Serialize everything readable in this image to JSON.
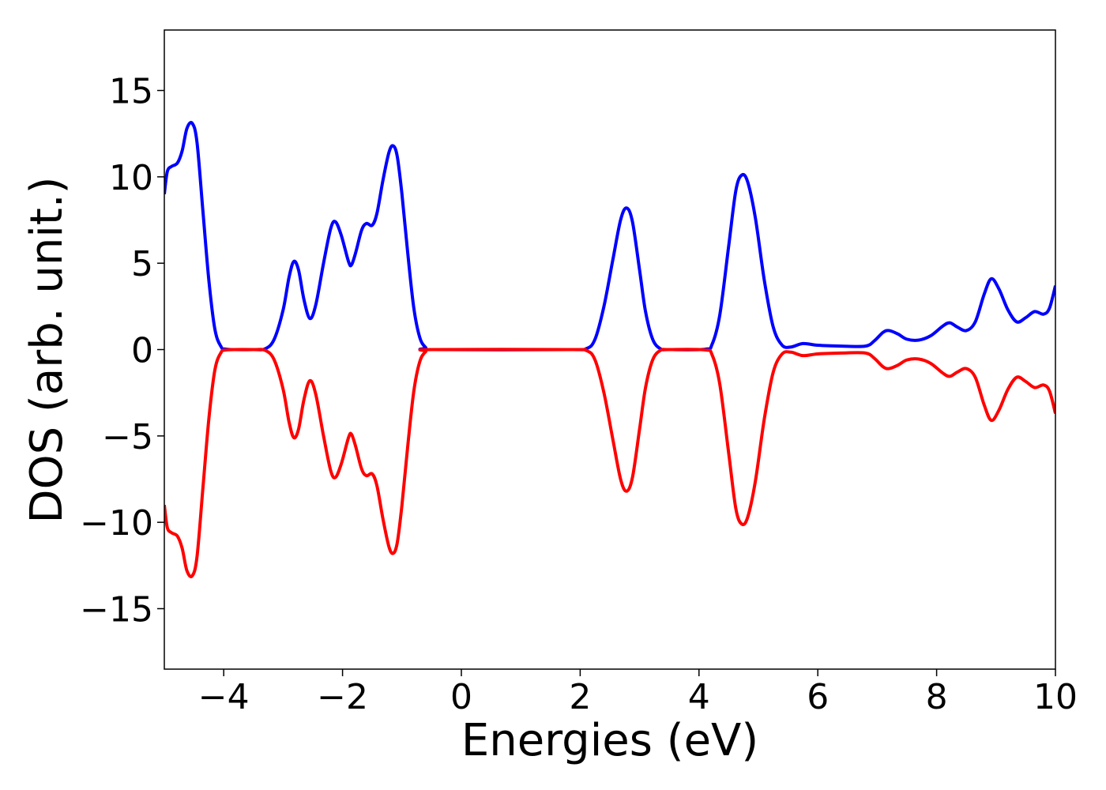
{
  "chart_data": {
    "type": "line",
    "title": "",
    "xlabel": "Energies (eV)",
    "ylabel": "DOS (arb. unit.)",
    "xlim": [
      -5,
      10
    ],
    "ylim": [
      -18.5,
      18.5
    ],
    "grid": false,
    "legend": "none",
    "xticks": [
      -4,
      -2,
      0,
      2,
      4,
      6,
      8,
      10
    ],
    "yticks": [
      -15,
      -10,
      -5,
      0,
      5,
      10,
      15
    ],
    "xtick_labels": [
      "−4",
      "−2",
      "0",
      "2",
      "4",
      "6",
      "8",
      "10"
    ],
    "ytick_labels": [
      "−15",
      "−10",
      "−5",
      "0",
      "5",
      "10",
      "15"
    ],
    "series": [
      {
        "color": "#0000ff",
        "points": [
          [
            -5.0,
            9.0
          ],
          [
            -4.95,
            10.3
          ],
          [
            -4.88,
            10.6
          ],
          [
            -4.78,
            10.8
          ],
          [
            -4.7,
            11.5
          ],
          [
            -4.62,
            12.8
          ],
          [
            -4.53,
            13.1
          ],
          [
            -4.45,
            12.0
          ],
          [
            -4.35,
            8.0
          ],
          [
            -4.25,
            4.0
          ],
          [
            -4.15,
            1.2
          ],
          [
            -4.05,
            0.2
          ],
          [
            -3.95,
            0.02
          ],
          [
            -3.5,
            0.0
          ],
          [
            -3.3,
            0.05
          ],
          [
            -3.15,
            0.6
          ],
          [
            -3.0,
            2.3
          ],
          [
            -2.9,
            4.2
          ],
          [
            -2.82,
            5.1
          ],
          [
            -2.74,
            4.6
          ],
          [
            -2.65,
            2.9
          ],
          [
            -2.55,
            1.8
          ],
          [
            -2.45,
            2.6
          ],
          [
            -2.32,
            5.0
          ],
          [
            -2.2,
            7.0
          ],
          [
            -2.12,
            7.4
          ],
          [
            -2.02,
            6.6
          ],
          [
            -1.9,
            5.1
          ],
          [
            -1.85,
            4.9
          ],
          [
            -1.78,
            5.6
          ],
          [
            -1.68,
            6.9
          ],
          [
            -1.6,
            7.3
          ],
          [
            -1.5,
            7.2
          ],
          [
            -1.42,
            7.9
          ],
          [
            -1.32,
            9.8
          ],
          [
            -1.22,
            11.4
          ],
          [
            -1.15,
            11.8
          ],
          [
            -1.08,
            11.2
          ],
          [
            -1.0,
            9.0
          ],
          [
            -0.9,
            5.5
          ],
          [
            -0.8,
            2.4
          ],
          [
            -0.7,
            0.7
          ],
          [
            -0.6,
            0.12
          ],
          [
            -0.5,
            0.0
          ],
          [
            1.8,
            0.0
          ],
          [
            2.1,
            0.05
          ],
          [
            2.25,
            0.6
          ],
          [
            2.4,
            2.5
          ],
          [
            2.55,
            5.2
          ],
          [
            2.68,
            7.5
          ],
          [
            2.78,
            8.2
          ],
          [
            2.88,
            7.4
          ],
          [
            3.0,
            4.6
          ],
          [
            3.1,
            2.2
          ],
          [
            3.22,
            0.6
          ],
          [
            3.35,
            0.05
          ],
          [
            3.5,
            0.0
          ],
          [
            4.1,
            0.02
          ],
          [
            4.22,
            0.3
          ],
          [
            4.35,
            2.0
          ],
          [
            4.5,
            6.0
          ],
          [
            4.62,
            9.2
          ],
          [
            4.72,
            10.1
          ],
          [
            4.82,
            9.7
          ],
          [
            4.95,
            7.6
          ],
          [
            5.1,
            4.0
          ],
          [
            5.25,
            1.3
          ],
          [
            5.4,
            0.25
          ],
          [
            5.55,
            0.15
          ],
          [
            5.75,
            0.35
          ],
          [
            6.0,
            0.25
          ],
          [
            6.4,
            0.2
          ],
          [
            6.8,
            0.2
          ],
          [
            6.95,
            0.5
          ],
          [
            7.1,
            1.0
          ],
          [
            7.2,
            1.1
          ],
          [
            7.35,
            0.9
          ],
          [
            7.5,
            0.6
          ],
          [
            7.7,
            0.55
          ],
          [
            7.9,
            0.8
          ],
          [
            8.1,
            1.35
          ],
          [
            8.22,
            1.55
          ],
          [
            8.35,
            1.3
          ],
          [
            8.5,
            1.1
          ],
          [
            8.65,
            1.6
          ],
          [
            8.8,
            3.2
          ],
          [
            8.92,
            4.1
          ],
          [
            9.05,
            3.5
          ],
          [
            9.2,
            2.3
          ],
          [
            9.35,
            1.6
          ],
          [
            9.5,
            1.85
          ],
          [
            9.65,
            2.2
          ],
          [
            9.8,
            2.05
          ],
          [
            9.9,
            2.4
          ],
          [
            10.0,
            3.7
          ]
        ]
      },
      {
        "color": "#ff0000",
        "points": [
          [
            -5.0,
            -9.0
          ],
          [
            -4.95,
            -10.3
          ],
          [
            -4.88,
            -10.6
          ],
          [
            -4.78,
            -10.8
          ],
          [
            -4.7,
            -11.5
          ],
          [
            -4.62,
            -12.8
          ],
          [
            -4.53,
            -13.1
          ],
          [
            -4.45,
            -12.0
          ],
          [
            -4.35,
            -8.0
          ],
          [
            -4.25,
            -4.0
          ],
          [
            -4.15,
            -1.2
          ],
          [
            -4.05,
            -0.2
          ],
          [
            -3.95,
            -0.02
          ],
          [
            -3.5,
            -0.0
          ],
          [
            -3.3,
            -0.05
          ],
          [
            -3.15,
            -0.6
          ],
          [
            -3.0,
            -2.3
          ],
          [
            -2.9,
            -4.2
          ],
          [
            -2.82,
            -5.1
          ],
          [
            -2.74,
            -4.6
          ],
          [
            -2.65,
            -2.9
          ],
          [
            -2.55,
            -1.8
          ],
          [
            -2.45,
            -2.6
          ],
          [
            -2.32,
            -5.0
          ],
          [
            -2.2,
            -7.0
          ],
          [
            -2.12,
            -7.4
          ],
          [
            -2.02,
            -6.6
          ],
          [
            -1.9,
            -5.1
          ],
          [
            -1.85,
            -4.9
          ],
          [
            -1.78,
            -5.6
          ],
          [
            -1.68,
            -6.9
          ],
          [
            -1.6,
            -7.3
          ],
          [
            -1.5,
            -7.2
          ],
          [
            -1.42,
            -7.9
          ],
          [
            -1.32,
            -9.8
          ],
          [
            -1.22,
            -11.4
          ],
          [
            -1.15,
            -11.8
          ],
          [
            -1.08,
            -11.2
          ],
          [
            -1.0,
            -9.0
          ],
          [
            -0.9,
            -5.5
          ],
          [
            -0.8,
            -2.4
          ],
          [
            -0.7,
            -0.7
          ],
          [
            -0.6,
            -0.12
          ],
          [
            -0.5,
            -0.0
          ],
          [
            1.8,
            -0.0
          ],
          [
            2.1,
            -0.05
          ],
          [
            2.25,
            -0.6
          ],
          [
            2.4,
            -2.5
          ],
          [
            2.55,
            -5.2
          ],
          [
            2.68,
            -7.5
          ],
          [
            2.78,
            -8.2
          ],
          [
            2.88,
            -7.4
          ],
          [
            3.0,
            -4.6
          ],
          [
            3.1,
            -2.2
          ],
          [
            3.22,
            -0.6
          ],
          [
            3.35,
            -0.05
          ],
          [
            3.5,
            -0.0
          ],
          [
            4.1,
            -0.02
          ],
          [
            4.22,
            -0.3
          ],
          [
            4.35,
            -2.0
          ],
          [
            4.5,
            -6.0
          ],
          [
            4.62,
            -9.2
          ],
          [
            4.72,
            -10.1
          ],
          [
            4.82,
            -9.7
          ],
          [
            4.95,
            -7.6
          ],
          [
            5.1,
            -4.0
          ],
          [
            5.25,
            -1.3
          ],
          [
            5.4,
            -0.25
          ],
          [
            5.55,
            -0.15
          ],
          [
            5.75,
            -0.35
          ],
          [
            6.0,
            -0.25
          ],
          [
            6.4,
            -0.2
          ],
          [
            6.8,
            -0.2
          ],
          [
            6.95,
            -0.5
          ],
          [
            7.1,
            -1.0
          ],
          [
            7.2,
            -1.1
          ],
          [
            7.35,
            -0.9
          ],
          [
            7.5,
            -0.6
          ],
          [
            7.7,
            -0.55
          ],
          [
            7.9,
            -0.8
          ],
          [
            8.1,
            -1.35
          ],
          [
            8.22,
            -1.55
          ],
          [
            8.35,
            -1.3
          ],
          [
            8.5,
            -1.1
          ],
          [
            8.65,
            -1.6
          ],
          [
            8.8,
            -3.2
          ],
          [
            8.92,
            -4.1
          ],
          [
            9.05,
            -3.5
          ],
          [
            9.2,
            -2.3
          ],
          [
            9.35,
            -1.6
          ],
          [
            9.5,
            -1.85
          ],
          [
            9.65,
            -2.2
          ],
          [
            9.8,
            -2.05
          ],
          [
            9.9,
            -2.4
          ],
          [
            10.0,
            -3.7
          ]
        ]
      }
    ]
  }
}
